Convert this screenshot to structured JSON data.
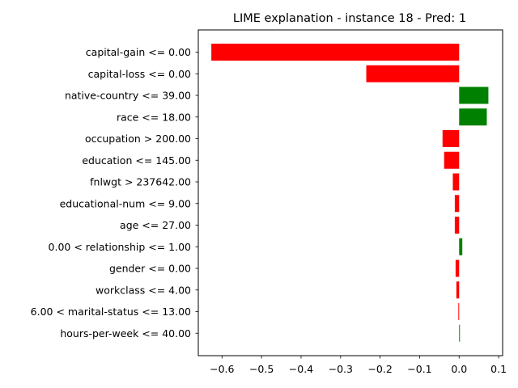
{
  "chart_data": {
    "type": "bar",
    "orientation": "horizontal",
    "title": "LIME explanation - instance 18 - Pred: 1",
    "xlabel": "",
    "ylabel": "",
    "xlim": [
      -0.66,
      0.11
    ],
    "xticks": [
      -0.6,
      -0.5,
      -0.4,
      -0.3,
      -0.2,
      -0.1,
      0.0,
      0.1
    ],
    "xtick_labels": [
      "−0.6",
      "−0.5",
      "−0.4",
      "−0.3",
      "−0.2",
      "−0.1",
      "0.0",
      "0.1"
    ],
    "grid": false,
    "categories": [
      "capital-gain <= 0.00",
      "capital-loss <= 0.00",
      "native-country <= 39.00",
      "race <= 18.00",
      "occupation > 200.00",
      "education <= 145.00",
      "fnlwgt > 237642.00",
      "educational-num <= 9.00",
      "age <= 27.00",
      "0.00 < relationship <= 1.00",
      "gender <= 0.00",
      "workclass <= 4.00",
      "6.00 < marital-status <= 13.00",
      "hours-per-week <= 40.00"
    ],
    "values": [
      -0.627,
      -0.235,
      0.074,
      0.07,
      -0.042,
      -0.038,
      -0.016,
      -0.011,
      -0.011,
      0.008,
      -0.009,
      -0.007,
      -0.002,
      0.002
    ],
    "colors": {
      "positive": "#008000",
      "negative": "#ff0000"
    }
  }
}
